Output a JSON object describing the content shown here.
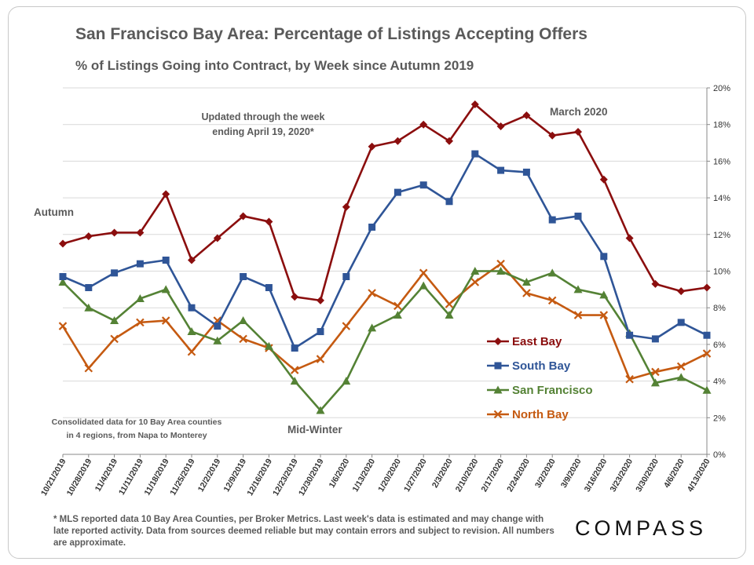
{
  "title": "San Francisco Bay Area: Percentage of Listings Accepting Offers",
  "subtitle": "% of Listings Going into Contract, by Week since Autumn 2019",
  "footnote": "* MLS reported data 10 Bay Area Counties, per Broker Metrics. Last week's data is estimated and may change with late reported activity. Data from sources deemed reliable but may contain errors and subject to revision. All numbers are approximate.",
  "logo": "COMPASS",
  "chart_data": {
    "type": "line",
    "x": [
      "10/21/2019",
      "10/28/2019",
      "11/4/2019",
      "11/11/2019",
      "11/18/2019",
      "11/25/2019",
      "12/2/2019",
      "12/9/2019",
      "12/16/2019",
      "12/23/2019",
      "12/30/2019",
      "1/6/2020",
      "1/13/2020",
      "1/20/2020",
      "1/27/2020",
      "2/3/2020",
      "2/10/2020",
      "2/17/2020",
      "2/24/2020",
      "3/2/2020",
      "3/9/2020",
      "3/16/2020",
      "3/23/2020",
      "3/30/2020",
      "4/6/2020",
      "4/13/2020"
    ],
    "ylim": [
      0,
      20
    ],
    "y_ticks": [
      "0%",
      "2%",
      "4%",
      "6%",
      "8%",
      "10%",
      "12%",
      "14%",
      "16%",
      "18%",
      "20%"
    ],
    "y_axis_side": "right",
    "grid": true,
    "legend_position": "lower-right inside plot",
    "series": [
      {
        "name": "East Bay",
        "color": "#8b0e0e",
        "marker": "diamond",
        "values": [
          11.5,
          11.9,
          12.1,
          12.1,
          14.2,
          10.6,
          11.8,
          13.0,
          12.7,
          8.6,
          8.4,
          13.5,
          16.8,
          17.1,
          18.0,
          17.1,
          19.1,
          17.9,
          18.5,
          17.4,
          17.6,
          15.0,
          11.8,
          9.3,
          8.9,
          9.1
        ]
      },
      {
        "name": "South Bay",
        "color": "#2f5597",
        "marker": "square",
        "values": [
          9.7,
          9.1,
          9.9,
          10.4,
          10.6,
          8.0,
          7.0,
          9.7,
          9.1,
          5.8,
          6.7,
          9.7,
          12.4,
          14.3,
          14.7,
          13.8,
          16.4,
          15.5,
          15.4,
          12.8,
          13.0,
          10.8,
          6.5,
          6.3,
          7.2,
          6.5
        ]
      },
      {
        "name": "San Francisco",
        "color": "#548235",
        "marker": "triangle",
        "values": [
          9.4,
          8.0,
          7.3,
          8.5,
          9.0,
          6.7,
          6.2,
          7.3,
          5.9,
          4.0,
          2.4,
          4.0,
          6.9,
          7.6,
          9.2,
          7.6,
          10.0,
          10.0,
          9.4,
          9.9,
          9.0,
          8.7,
          6.6,
          3.9,
          4.2,
          3.5
        ]
      },
      {
        "name": "North Bay",
        "color": "#c55a11",
        "marker": "x",
        "values": [
          7.0,
          4.7,
          6.3,
          7.2,
          7.3,
          5.6,
          7.3,
          6.3,
          5.8,
          4.6,
          5.2,
          7.0,
          8.8,
          8.1,
          9.9,
          8.2,
          9.4,
          10.4,
          8.8,
          8.4,
          7.6,
          7.6,
          4.1,
          4.5,
          4.8,
          5.5
        ]
      }
    ],
    "annotations": {
      "updated": [
        "Updated through the week",
        "ending April 19, 2020*"
      ],
      "autumn": "Autumn",
      "midwinter": "Mid-Winter",
      "march": "March 2020",
      "consolidated": [
        "Consolidated data for 10 Bay Area counties",
        "in 4 regions, from Napa to Monterey"
      ]
    }
  }
}
